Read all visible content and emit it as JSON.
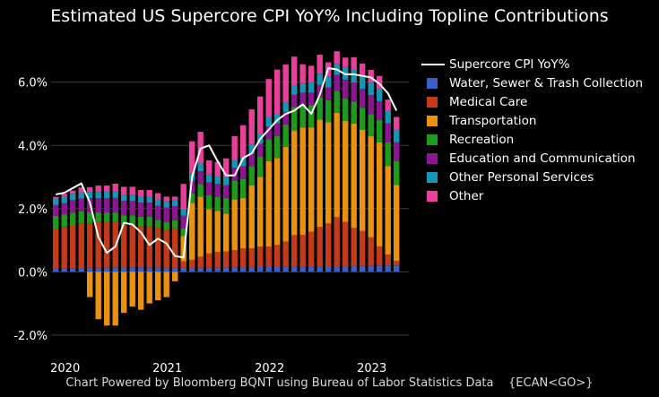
{
  "title": "Estimated US Supercore CPI YoY% Including Topline Contributions",
  "footer": {
    "source": "Chart Powered by Bloomberg BQNT using Bureau of Labor Statistics Data",
    "ticker": "{ECAN<GO>}"
  },
  "colors": {
    "background": "#000000",
    "grid": "#3a3a3a",
    "line": "#ffffff"
  },
  "chart_data": {
    "type": "bar",
    "stacked": true,
    "title": "Estimated US Supercore CPI YoY% Including Topline Contributions",
    "xlabel": "",
    "ylabel": "",
    "ylim": [
      -2.6,
      6.9
    ],
    "yticks": [
      "-2.0%",
      "0.0%",
      "2.0%",
      "4.0%",
      "6.0%"
    ],
    "ytick_values": [
      -2,
      0,
      2,
      4,
      6
    ],
    "xticks": [
      "2020",
      "2021",
      "2022",
      "2023"
    ],
    "xtick_index": [
      1,
      13,
      25,
      37
    ],
    "categories": [
      "Dec 2019",
      "Jan 2020",
      "Feb 2020",
      "Mar 2020",
      "Apr 2020",
      "May 2020",
      "Jun 2020",
      "Jul 2020",
      "Aug 2020",
      "Sep 2020",
      "Oct 2020",
      "Nov 2020",
      "Dec 2020",
      "Jan 2021",
      "Feb 2021",
      "Mar 2021",
      "Apr 2021",
      "May 2021",
      "Jun 2021",
      "Jul 2021",
      "Aug 2021",
      "Sep 2021",
      "Oct 2021",
      "Nov 2021",
      "Dec 2021",
      "Jan 2022",
      "Feb 2022",
      "Mar 2022",
      "Apr 2022",
      "May 2022",
      "Jun 2022",
      "Jul 2022",
      "Aug 2022",
      "Sep 2022",
      "Oct 2022",
      "Nov 2022",
      "Dec 2022",
      "Jan 2023",
      "Feb 2023",
      "Mar 2023",
      "Apr 2023"
    ],
    "series": [
      {
        "name": "Water, Sewer & Trash Collection",
        "color": "#3a5fc8",
        "values": [
          0.12,
          0.12,
          0.12,
          0.12,
          0.13,
          0.13,
          0.13,
          0.14,
          0.14,
          0.14,
          0.14,
          0.14,
          0.14,
          0.13,
          0.13,
          0.13,
          0.13,
          0.13,
          0.13,
          0.13,
          0.14,
          0.14,
          0.14,
          0.14,
          0.15,
          0.15,
          0.15,
          0.16,
          0.16,
          0.17,
          0.17,
          0.17,
          0.18,
          0.18,
          0.18,
          0.19,
          0.19,
          0.19,
          0.2,
          0.2,
          0.2
        ]
      },
      {
        "name": "Medical Care",
        "color": "#c43a1a",
        "values": [
          1.25,
          1.3,
          1.35,
          1.4,
          1.4,
          1.45,
          1.45,
          1.45,
          1.35,
          1.35,
          1.3,
          1.3,
          1.25,
          1.2,
          1.25,
          0.2,
          0.25,
          0.35,
          0.45,
          0.5,
          0.5,
          0.55,
          0.6,
          0.6,
          0.65,
          0.65,
          0.7,
          0.8,
          1.0,
          1.0,
          1.1,
          1.25,
          1.35,
          1.55,
          1.4,
          1.2,
          1.1,
          0.9,
          0.6,
          0.35,
          0.15
        ]
      },
      {
        "name": "Transportation",
        "color": "#e8920f",
        "values": [
          0,
          0,
          0,
          0,
          -0.8,
          -1.5,
          -1.7,
          -1.7,
          -1.3,
          -1.1,
          -1.2,
          -1.0,
          -0.9,
          -0.8,
          -0.3,
          0.8,
          1.8,
          1.9,
          1.4,
          1.3,
          1.2,
          1.6,
          1.6,
          2.0,
          2.2,
          2.7,
          2.75,
          3.0,
          3.3,
          3.4,
          3.3,
          3.4,
          3.2,
          3.3,
          3.2,
          3.3,
          3.2,
          3.2,
          3.3,
          2.8,
          2.4
        ]
      },
      {
        "name": "Recreation",
        "color": "#1f9a1f",
        "values": [
          0.4,
          0.4,
          0.4,
          0.4,
          0.35,
          0.3,
          0.3,
          0.3,
          0.3,
          0.3,
          0.3,
          0.3,
          0.25,
          0.25,
          0.25,
          0.25,
          0.3,
          0.4,
          0.45,
          0.45,
          0.5,
          0.6,
          0.6,
          0.6,
          0.65,
          0.7,
          0.7,
          0.7,
          0.75,
          0.7,
          0.7,
          0.7,
          0.7,
          0.7,
          0.7,
          0.7,
          0.7,
          0.7,
          0.7,
          0.75,
          0.75
        ]
      },
      {
        "name": "Education and Communication",
        "color": "#8a1690",
        "values": [
          0.35,
          0.35,
          0.4,
          0.4,
          0.45,
          0.45,
          0.45,
          0.45,
          0.45,
          0.45,
          0.45,
          0.45,
          0.45,
          0.45,
          0.45,
          0.4,
          0.4,
          0.4,
          0.4,
          0.4,
          0.4,
          0.4,
          0.4,
          0.4,
          0.4,
          0.4,
          0.4,
          0.4,
          0.4,
          0.4,
          0.4,
          0.4,
          0.4,
          0.5,
          0.6,
          0.6,
          0.6,
          0.6,
          0.6,
          0.6,
          0.6
        ]
      },
      {
        "name": "Other Personal Services",
        "color": "#1696b4",
        "values": [
          0.2,
          0.2,
          0.2,
          0.2,
          0.2,
          0.2,
          0.2,
          0.2,
          0.2,
          0.2,
          0.2,
          0.2,
          0.2,
          0.2,
          0.2,
          0.2,
          0.25,
          0.25,
          0.25,
          0.25,
          0.25,
          0.25,
          0.3,
          0.3,
          0.3,
          0.3,
          0.3,
          0.3,
          0.3,
          0.3,
          0.35,
          0.35,
          0.35,
          0.35,
          0.4,
          0.4,
          0.4,
          0.4,
          0.4,
          0.4,
          0.4
        ]
      },
      {
        "name": "Other",
        "color": "#e8409a",
        "values": [
          0.05,
          0.1,
          0.1,
          0.15,
          0.15,
          0.2,
          0.2,
          0.25,
          0.25,
          0.25,
          0.2,
          0.2,
          0.2,
          0.15,
          0.1,
          0.8,
          1.0,
          1.0,
          0.45,
          0.45,
          0.6,
          0.75,
          1.0,
          1.1,
          1.2,
          1.2,
          1.4,
          1.2,
          0.9,
          0.6,
          0.5,
          0.6,
          0.45,
          0.4,
          0.3,
          0.4,
          0.4,
          0.4,
          0.4,
          0.35,
          0.4
        ]
      }
    ],
    "line": {
      "name": "Supercore CPI YoY%",
      "color": "#ffffff",
      "values": [
        2.45,
        2.5,
        2.65,
        2.8,
        2.2,
        1.1,
        0.6,
        0.8,
        1.55,
        1.5,
        1.25,
        0.85,
        1.05,
        0.9,
        0.5,
        0.45,
        3.0,
        3.9,
        4.0,
        3.5,
        3.05,
        3.05,
        3.6,
        3.75,
        4.2,
        4.5,
        4.8,
        5.0,
        5.1,
        5.3,
        5.0,
        5.6,
        6.45,
        6.4,
        6.25,
        6.25,
        6.2,
        6.15,
        5.95,
        5.65,
        5.1
      ]
    },
    "legend_position": "right",
    "grid": true
  }
}
